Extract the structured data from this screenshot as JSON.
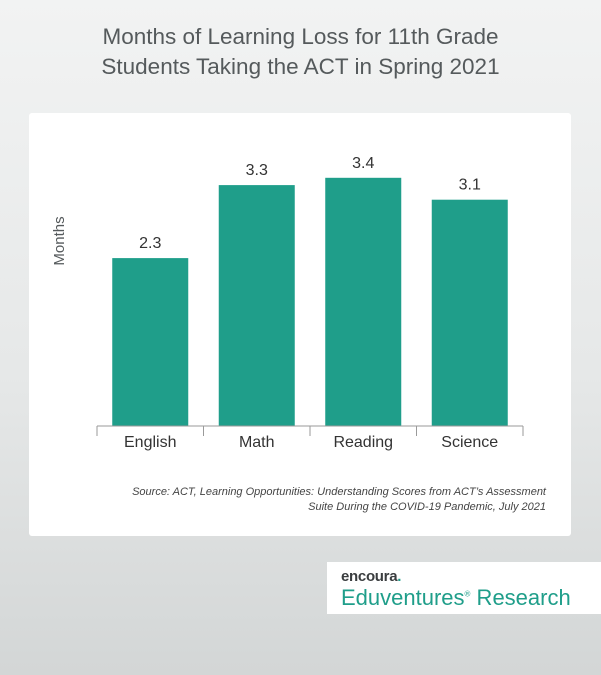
{
  "title_line1": "Months of Learning Loss for 11th Grade",
  "title_line2": "Students Taking the ACT in Spring 2021",
  "source_line1": "Source: ACT, Learning Opportunities: Understanding Scores from ACT’s Assessment",
  "source_line2": "Suite During the COVID-19 Pandemic, July 2021",
  "logo": {
    "brand": "encoura",
    "brand_mark": ".",
    "sub": "Eduventures",
    "sub_mark": "®",
    "sub_tail": " Research"
  },
  "colors": {
    "bar": "#1f9e8a",
    "title": "#555a5c",
    "card": "#ffffff"
  },
  "chart_data": {
    "type": "bar",
    "title": "Months of Learning Loss for 11th Grade Students Taking the ACT in Spring 2021",
    "categories": [
      "English",
      "Math",
      "Reading",
      "Science"
    ],
    "values": [
      2.3,
      3.3,
      3.4,
      3.1
    ],
    "data_labels": [
      "2.3",
      "3.3",
      "3.4",
      "3.1"
    ],
    "xlabel": "",
    "ylabel": "Months",
    "ylim": [
      0,
      4
    ],
    "grid": false,
    "legend": "none"
  }
}
